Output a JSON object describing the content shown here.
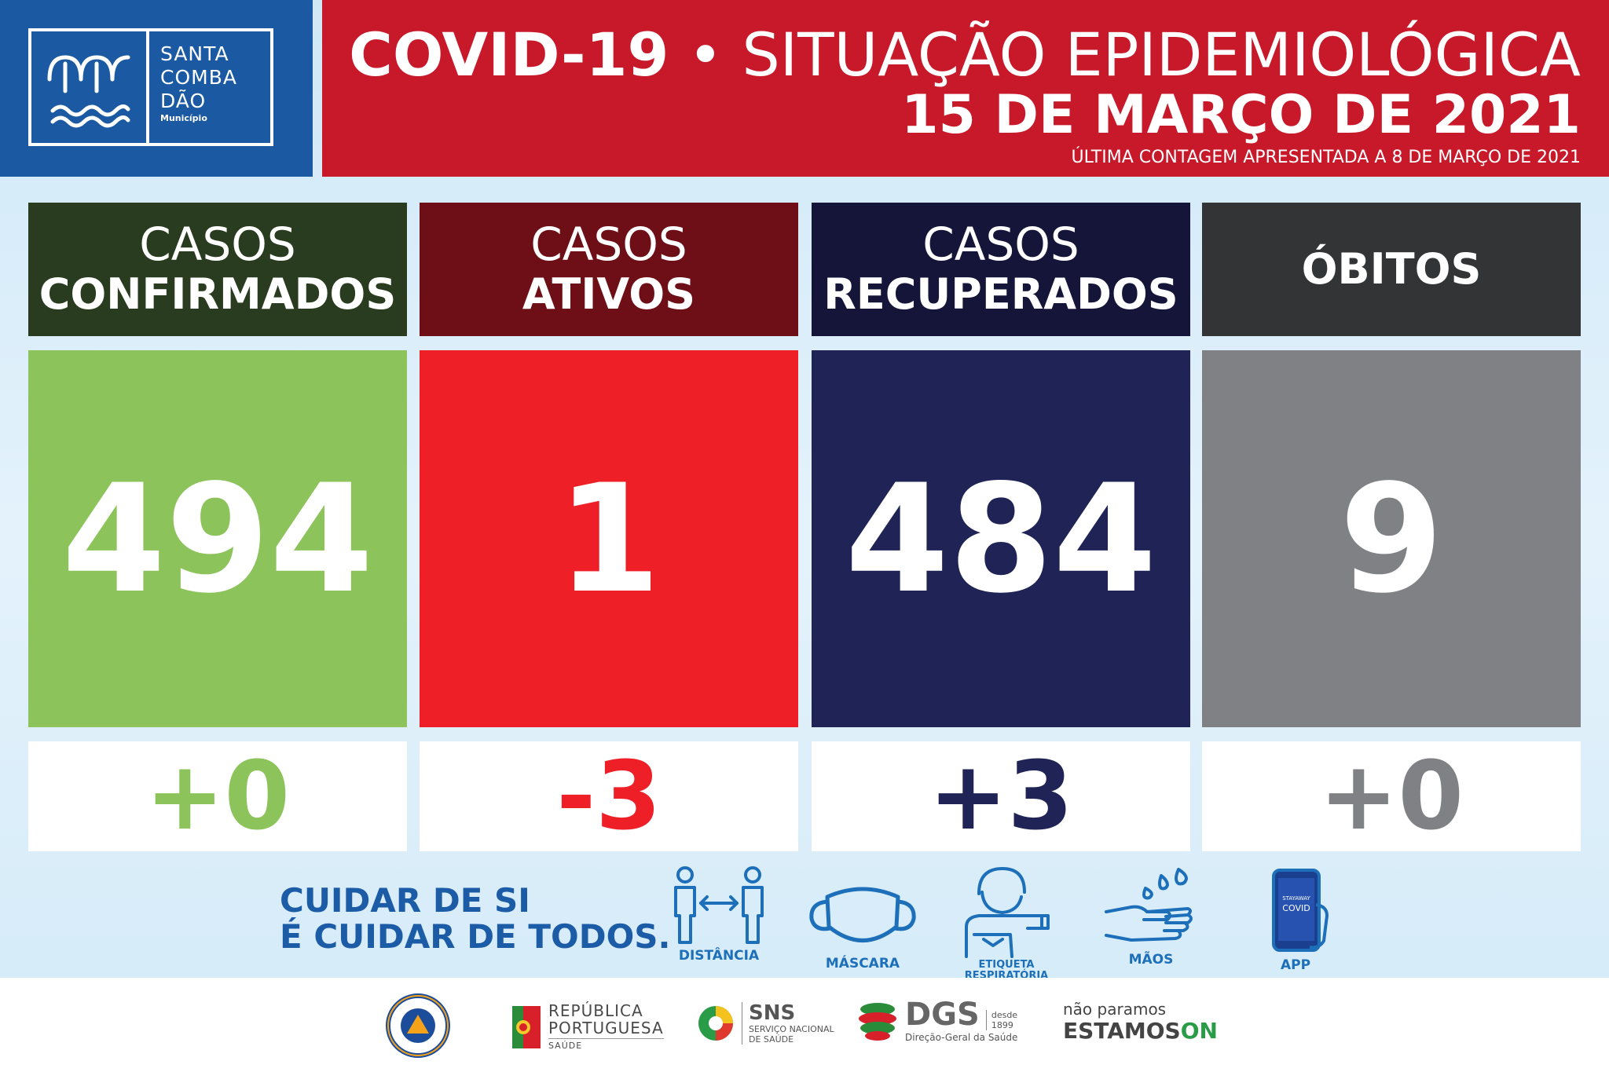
{
  "logo": {
    "name_lines": [
      "SANTA",
      "COMBA",
      "DÃO"
    ],
    "sub": "Município"
  },
  "header": {
    "title_bold": "COVID-19",
    "title_rest": "• SITUAÇÃO EPIDEMIOLÓGICA",
    "date": "15 DE MARÇO DE 2021",
    "note": "ÚLTIMA CONTAGEM APRESENTADA A 8 DE MARÇO DE 2021"
  },
  "stats": [
    {
      "line1": "CASOS",
      "line2": "CONFIRMADOS",
      "value": "494",
      "delta": "+0",
      "head_color": "#2a3c1f",
      "value_color": "#8cc35a",
      "delta_color": "#8cc35a"
    },
    {
      "line1": "CASOS",
      "line2": "ATIVOS",
      "value": "1",
      "delta": "-3",
      "head_color": "#6e0e16",
      "value_color": "#ee1f26",
      "delta_color": "#ee1f26"
    },
    {
      "line1": "CASOS",
      "line2": "RECUPERADOS",
      "value": "484",
      "delta": "+3",
      "head_color": "#141539",
      "value_color": "#1f2355",
      "delta_color": "#1f2355"
    },
    {
      "line1": "",
      "line2": "ÓBITOS",
      "value": "9",
      "delta": "+0",
      "head_color": "#333435",
      "value_color": "#808184",
      "delta_color": "#808184"
    }
  ],
  "slogan": {
    "line1": "CUIDAR DE SI",
    "line2": "É CUIDAR DE TODOS."
  },
  "care_items": [
    {
      "label": "DISTÂNCIA",
      "icon": "distance-icon"
    },
    {
      "label": "MÁSCARA",
      "icon": "mask-icon"
    },
    {
      "label": "ETIQUETA RESPIRATÓRIA",
      "icon": "respiratory-etiquette-icon"
    },
    {
      "label": "MÃOS",
      "icon": "hand-wash-icon"
    },
    {
      "label": "APP",
      "icon": "phone-app-icon"
    }
  ],
  "app_screen": {
    "line1": "STAYAWAY",
    "line2": "COVID"
  },
  "footer": {
    "republica": [
      "REPÚBLICA",
      "PORTUGUESA"
    ],
    "republica_sub": "SAÚDE",
    "sns": "SNS",
    "sns_sub": [
      "SERVIÇO NACIONAL",
      "DE SAÚDE"
    ],
    "dgs": "DGS",
    "dgs_since": [
      "desde",
      "1899"
    ],
    "dgs_sub": "Direção-Geral da Saúde",
    "estamos_top": "não paramos",
    "estamos_main": "ESTAMOS",
    "estamos_on": "ON"
  }
}
